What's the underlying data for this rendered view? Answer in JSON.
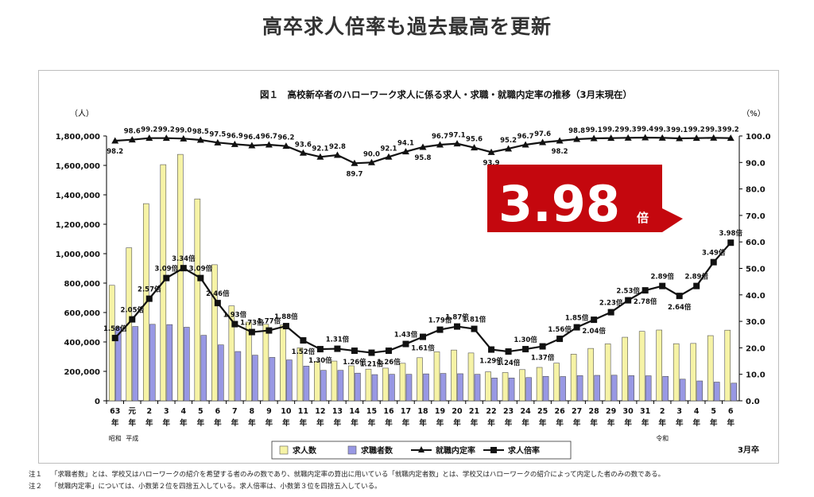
{
  "page": {
    "headline": "高卒求人倍率も過去最高を更新",
    "notes": [
      {
        "mark": "注１",
        "text": "「求職者数」とは、学校又はハローワークの紹介を希望する者のみの数であり、就職内定率の算出に用いている「就職内定者数」とは、学校又はハローワークの紹介によって内定した者のみの数である。"
      },
      {
        "mark": "注２",
        "text": "「就職内定率」については、小数第２位を四捨五入している。求人倍率は、小数第３位を四捨五入している。"
      }
    ]
  },
  "chart_data": {
    "type": "bar",
    "title": "図１　高校新卒者のハローワーク求人に係る求人・求職・就職内定率の推移（3月末現在）",
    "ylabel_left": "（人）",
    "ylabel_right": "（%）",
    "ylim_left": [
      0,
      1800000
    ],
    "ylim_right": [
      0,
      100
    ],
    "left_ticks": [
      "0",
      "200,000",
      "400,000",
      "600,000",
      "800,000",
      "1,000,000",
      "1,200,000",
      "1,400,000",
      "1,600,000",
      "1,800,000"
    ],
    "right_ticks": [
      "0.0",
      "10.0",
      "20.0",
      "30.0",
      "40.0",
      "50.0",
      "60.0",
      "70.0",
      "80.0",
      "90.0",
      "100.0"
    ],
    "categories": [
      "63",
      "元",
      "2",
      "3",
      "4",
      "5",
      "6",
      "7",
      "8",
      "9",
      "10",
      "11",
      "12",
      "13",
      "14",
      "15",
      "16",
      "17",
      "18",
      "19",
      "20",
      "21",
      "22",
      "23",
      "24",
      "25",
      "26",
      "27",
      "28",
      "29",
      "30",
      "31",
      "2",
      "3",
      "4",
      "5",
      "6"
    ],
    "year_suffix": "年",
    "era_labels": [
      {
        "label": "昭和",
        "at": 0
      },
      {
        "label": "平成",
        "at": 1
      },
      {
        "label": "令和",
        "at": 32
      }
    ],
    "x_unit": "3月卒",
    "series": [
      {
        "name": "求人数",
        "kind": "bar",
        "color": "#f6f3a6",
        "values": [
          785000,
          1040000,
          1340000,
          1605000,
          1675000,
          1372000,
          925000,
          645000,
          535000,
          520000,
          515000,
          360000,
          268000,
          270000,
          238000,
          215000,
          222000,
          255000,
          293000,
          333000,
          345000,
          325000,
          197000,
          192000,
          212000,
          227000,
          256000,
          317000,
          356000,
          387000,
          432000,
          472000,
          481000,
          388000,
          390000,
          443000,
          480000
        ]
      },
      {
        "name": "求職者数",
        "kind": "bar",
        "color": "#9898e4",
        "values": [
          500000,
          505000,
          520000,
          518000,
          500000,
          445000,
          380000,
          335000,
          310000,
          295000,
          278000,
          236000,
          207000,
          207000,
          188000,
          178000,
          180000,
          180000,
          183000,
          186000,
          184000,
          180000,
          155000,
          155000,
          158000,
          166000,
          165000,
          171000,
          173000,
          174000,
          171000,
          170000,
          166000,
          147000,
          135000,
          127000,
          120000
        ]
      },
      {
        "name": "就職内定率",
        "kind": "line",
        "axis": "right",
        "marker": "triangle",
        "values": [
          98.2,
          98.6,
          99.2,
          99.2,
          99.0,
          98.5,
          97.5,
          96.9,
          96.4,
          96.7,
          96.2,
          93.6,
          92.1,
          92.8,
          89.7,
          90.0,
          92.1,
          94.1,
          95.8,
          96.7,
          97.1,
          95.6,
          93.9,
          95.2,
          96.7,
          97.6,
          98.2,
          98.8,
          99.1,
          99.2,
          99.3,
          99.4,
          99.3,
          99.1,
          99.2,
          99.3,
          99.2
        ],
        "labels": [
          "98.2",
          "98.6",
          "99.2",
          "99.2",
          "99.0",
          "98.5",
          "97.5",
          "96.9",
          "96.4",
          "96.7",
          "96.2",
          "93.6",
          "92.1",
          "92.8",
          "89.7",
          "90.0",
          "92.1",
          "94.1",
          "95.8",
          "96.7",
          "97.1",
          "95.6",
          "93.9",
          "95.2",
          "96.7",
          "97.6",
          "98.2",
          "98.8",
          "99.1",
          "99.2",
          "99.3",
          "99.4",
          "99.3",
          "99.1",
          "99.2",
          "99.3",
          "99.2"
        ],
        "label_below": [
          0,
          22,
          26,
          18,
          14
        ]
      },
      {
        "name": "求人倍率",
        "kind": "line",
        "axis": "ratio",
        "marker": "square",
        "values": [
          1.58,
          2.05,
          2.57,
          3.09,
          3.34,
          3.09,
          2.46,
          1.93,
          1.73,
          1.77,
          1.88,
          1.52,
          1.3,
          1.31,
          1.26,
          1.21,
          1.26,
          1.43,
          1.61,
          1.79,
          1.87,
          1.81,
          1.29,
          1.24,
          1.3,
          1.37,
          1.56,
          1.85,
          2.04,
          2.23,
          2.53,
          2.78,
          2.89,
          2.64,
          2.89,
          3.49,
          3.98
        ],
        "labels": [
          "1.58倍",
          "2.05倍",
          "2.57倍",
          "3.09倍",
          "3.34倍",
          "3.09倍",
          "2.46倍",
          "1.93倍",
          "1.73倍",
          "1.77倍",
          "1.88倍",
          "1.52倍",
          "1.30倍",
          "1.31倍",
          "1.26倍",
          "1.21倍",
          "1.26倍",
          "1.43倍",
          "1.61倍",
          "1.79倍",
          "1.87倍",
          "1.81倍",
          "1.29倍",
          "1.24倍",
          "1.30倍",
          "1.37倍",
          "1.56倍",
          "1.85倍",
          "2.04倍",
          "2.23倍",
          "2.53倍",
          "2.78倍",
          "2.89倍",
          "2.64倍",
          "2.89倍",
          "3.49倍",
          "3.98倍"
        ],
        "label_below": [
          11,
          12,
          14,
          15,
          16,
          18,
          22,
          23,
          25,
          28,
          31,
          33
        ]
      }
    ],
    "callout": {
      "value": "3.98",
      "unit": "倍",
      "color": "#c4070e"
    },
    "legend": [
      "求人数",
      "求職者数",
      "就職内定率",
      "求人倍率"
    ]
  }
}
